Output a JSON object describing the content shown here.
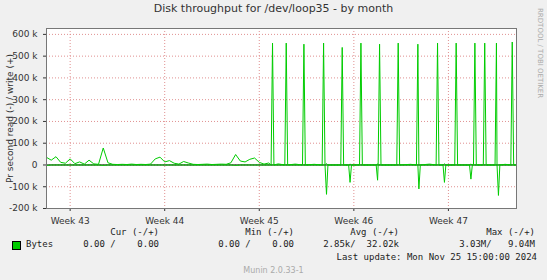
{
  "chart_data": {
    "type": "line",
    "title": "Disk throughput for /dev/loop35 - by month",
    "y_label": "Pr second read (-) / write (+)",
    "x": [
      42.75,
      42.8,
      42.85,
      42.9,
      42.95,
      43,
      43.05,
      43.1,
      43.15,
      43.2,
      43.25,
      43.3,
      43.35,
      43.4,
      43.45,
      43.5,
      43.55,
      43.6,
      43.65,
      43.7,
      43.75,
      43.8,
      43.85,
      43.9,
      43.95,
      44,
      44.05,
      44.1,
      44.15,
      44.2,
      44.25,
      44.3,
      44.35,
      44.4,
      44.45,
      44.5,
      44.55,
      44.6,
      44.65,
      44.7,
      44.75,
      44.8,
      44.85,
      44.9,
      44.95,
      45,
      45.05,
      45.1,
      45.125,
      45.14,
      45.155,
      45.2,
      45.27,
      45.285,
      45.3,
      45.38,
      45.457,
      45.472,
      45.487,
      45.58,
      45.665,
      45.68,
      45.695,
      45.711,
      45.726,
      45.862,
      45.877,
      45.892,
      45.945,
      45.96,
      45.975,
      46.06,
      46.075,
      46.09,
      46.236,
      46.251,
      46.257,
      46.272,
      46.287,
      46.454,
      46.469,
      46.484,
      46.6,
      46.662,
      46.677,
      46.688,
      46.703,
      46.8,
      46.87,
      46.885,
      46.9,
      46.943,
      46.958,
      46.973,
      47.067,
      47.082,
      47.097,
      47.223,
      47.238,
      47.253,
      47.265,
      47.28,
      47.295,
      47.369,
      47.384,
      47.399,
      47.493,
      47.508,
      47.514,
      47.529,
      47.544,
      47.6,
      47.66,
      47.675,
      47.69,
      47.71
    ],
    "series": [
      {
        "name": "Bytes",
        "color": "#00cc00",
        "values": [
          35000,
          22000,
          38000,
          12000,
          8000,
          28000,
          6000,
          14000,
          4000,
          22000,
          5000,
          3000,
          78000,
          10000,
          3000,
          2000,
          3000,
          2000,
          4000,
          2000,
          3000,
          2000,
          4000,
          28000,
          36000,
          14000,
          20000,
          8000,
          4000,
          16000,
          9000,
          3000,
          2000,
          3000,
          4000,
          2000,
          3000,
          4000,
          3000,
          10000,
          48000,
          18000,
          14000,
          26000,
          32000,
          12000,
          4000,
          9000,
          0,
          560000,
          0,
          5000,
          0,
          560000,
          0,
          4000,
          0,
          555000,
          0,
          3000,
          0,
          560000,
          0,
          6000,
          0,
          0,
          540000,
          0,
          0,
          4000,
          0,
          0,
          560000,
          0,
          0,
          5000,
          0,
          555000,
          0,
          0,
          560000,
          0,
          3000,
          0,
          555000,
          0,
          0,
          4000,
          0,
          560000,
          0,
          0,
          5000,
          0,
          0,
          560000,
          0,
          0,
          4000,
          0,
          0,
          560000,
          0,
          0,
          560000,
          0,
          0,
          560000,
          0,
          0,
          0,
          3000,
          0,
          565000,
          0,
          0
        ],
        "read_values": [
          -2000,
          0,
          0,
          0,
          0,
          0,
          0,
          0,
          0,
          0,
          0,
          0,
          -2000,
          0,
          0,
          0,
          0,
          0,
          0,
          0,
          0,
          0,
          0,
          0,
          0,
          0,
          0,
          0,
          0,
          0,
          0,
          0,
          0,
          0,
          0,
          0,
          0,
          0,
          0,
          0,
          -2000,
          0,
          0,
          0,
          0,
          0,
          0,
          0,
          0,
          0,
          0,
          0,
          0,
          0,
          0,
          0,
          0,
          0,
          0,
          0,
          0,
          0,
          0,
          -135000,
          0,
          0,
          0,
          0,
          0,
          -80000,
          0,
          0,
          0,
          0,
          0,
          -70000,
          0,
          0,
          0,
          0,
          0,
          0,
          0,
          0,
          0,
          -110000,
          0,
          0,
          0,
          0,
          0,
          0,
          -80000,
          0,
          0,
          0,
          0,
          0,
          -65000,
          0,
          0,
          0,
          0,
          0,
          0,
          0,
          0,
          0,
          0,
          -140000,
          0,
          0,
          0,
          0,
          0,
          0
        ]
      }
    ],
    "xlim": [
      42.75,
      47.72
    ],
    "xticks": [
      {
        "value": 43,
        "label": "Week 43"
      },
      {
        "value": 44,
        "label": "Week 44"
      },
      {
        "value": 45,
        "label": "Week 45"
      },
      {
        "value": 46,
        "label": "Week 46"
      },
      {
        "value": 47,
        "label": "Week 47"
      }
    ],
    "ylim": [
      -200000,
      627000
    ],
    "yticks": [
      {
        "value": -200000,
        "label": "-200 k"
      },
      {
        "value": -100000,
        "label": "-100 k"
      },
      0,
      {
        "value": 100000,
        "label": "100 k"
      },
      {
        "value": 200000,
        "label": "200 k"
      },
      {
        "value": 300000,
        "label": "300 k"
      },
      {
        "value": 400000,
        "label": "400 k"
      },
      {
        "value": 500000,
        "label": "500 k"
      },
      {
        "value": 600000,
        "label": "600 k"
      }
    ],
    "grid": true,
    "legend_table": {
      "headers": [
        "Cur (-/+)",
        "Min (-/+)",
        "Avg (-/+)",
        "Max (-/+)"
      ],
      "rows": [
        {
          "name": "Bytes",
          "cells": [
            "0.00 /    0.00",
            "0.00 /    0.00",
            "2.85k/  32.02k",
            "3.03M/   9.04M"
          ]
        }
      ]
    },
    "last_update": "Last update: Mon Nov 25 15:00:00 2024",
    "footer": "Munin 2.0.33-1",
    "side_text": "RRDTOOL / TOBI OETIKER"
  }
}
